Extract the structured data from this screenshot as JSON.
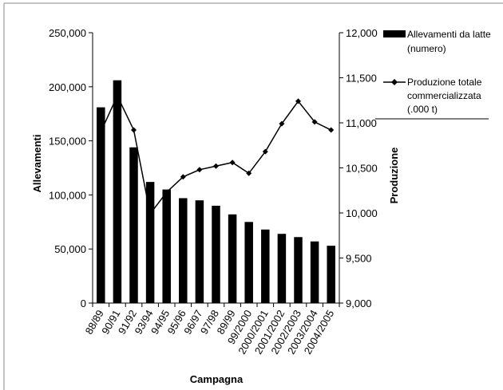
{
  "chart_data": {
    "type": "bar",
    "categories": [
      "88/89",
      "90/91",
      "91/92",
      "93/94",
      "94/95",
      "95/96",
      "96/97",
      "97/98",
      "89/99",
      "99/2000",
      "2000/2001",
      "2001/2002",
      "2002/2003",
      "2003/2004",
      "2004/2005"
    ],
    "xlabel": "Campagna",
    "ylabel": "Allevamenti",
    "y2label": "Produzione",
    "ylim": [
      0,
      250000
    ],
    "y2lim": [
      9000,
      12000
    ],
    "yticks": [
      "0",
      "50,000",
      "100,000",
      "150,000",
      "200,000",
      "250,000"
    ],
    "y2ticks": [
      "9,000",
      "9,500",
      "10,000",
      "10,500",
      "11,000",
      "11,500",
      "12,000"
    ],
    "series": [
      {
        "name": "Allevamenti da latte (numero)",
        "type": "bar",
        "axis": "left",
        "color": "#000000",
        "values": [
          181000,
          206000,
          144000,
          112000,
          105000,
          97000,
          95000,
          90000,
          82000,
          75000,
          68000,
          64000,
          61000,
          57000,
          53000
        ]
      },
      {
        "name": "Produzione totale commercializzata (.000 t)",
        "type": "line",
        "axis": "right",
        "color": "#000000",
        "marker": "diamond",
        "values": [
          10900,
          11300,
          10920,
          9990,
          10230,
          10400,
          10480,
          10520,
          10560,
          10440,
          10680,
          10990,
          11240,
          11010,
          10920
        ]
      }
    ],
    "legend": {
      "position": "right",
      "entries": [
        {
          "lines": [
            "Allevamenti da latte",
            "(numero)"
          ]
        },
        {
          "lines": [
            "Produzione totale",
            "commercializzata",
            "(.000 t)"
          ]
        }
      ]
    },
    "grid": false
  }
}
